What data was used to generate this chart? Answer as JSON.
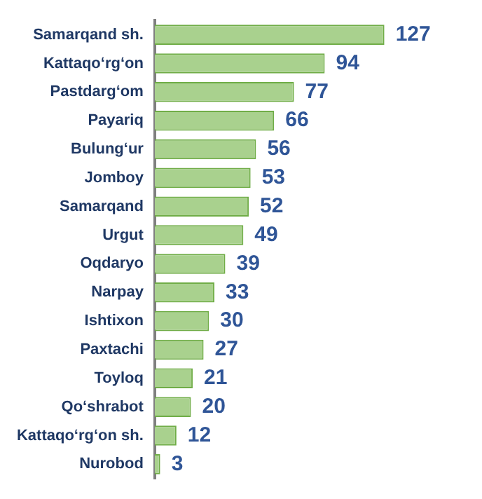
{
  "chart_data": {
    "type": "bar",
    "orientation": "horizontal",
    "categories": [
      "Samarqand sh.",
      "Kattaqo‘rg‘on",
      "Pastdarg‘om",
      "Payariq",
      "Bulung‘ur",
      "Jomboy",
      "Samarqand",
      "Urgut",
      "Oqdaryo",
      "Narpay",
      "Ishtixon",
      "Paxtachi",
      "Toyloq",
      "Qo‘shrabot",
      "Kattaqo‘rg‘on sh.",
      "Nurobod"
    ],
    "values": [
      127,
      94,
      77,
      66,
      56,
      53,
      52,
      49,
      39,
      33,
      30,
      27,
      21,
      20,
      12,
      3
    ],
    "color": "#a9d18e",
    "data_labels": true,
    "grid": false,
    "legend": false
  }
}
